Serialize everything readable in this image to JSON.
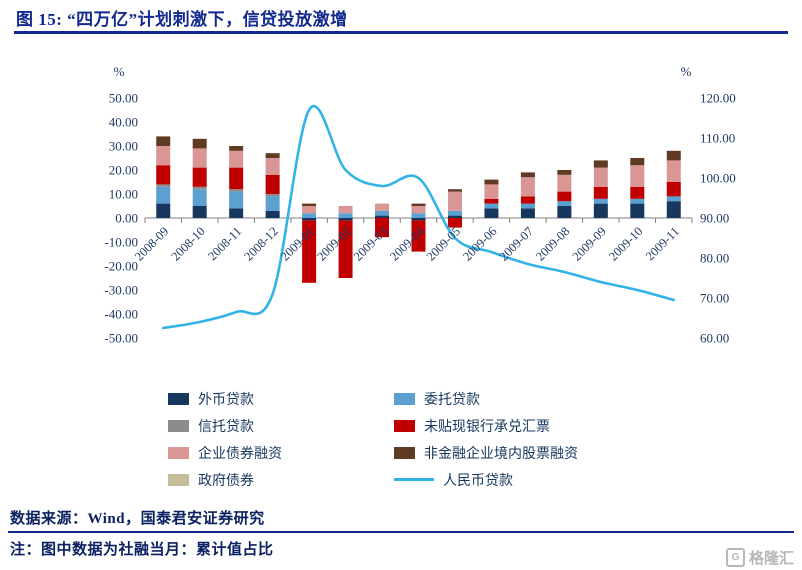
{
  "figure": {
    "title": "图 15:  “四万亿”计划刺激下，信贷投放激增"
  },
  "chart_data": {
    "type": "combo-stacked-bar-line",
    "title": "“四万亿”计划刺激下，信贷投放激增",
    "categories": [
      "2008-09",
      "2008-10",
      "2008-11",
      "2008-12",
      "2009-01",
      "2009-02",
      "2009-03",
      "2009-04",
      "2009-05",
      "2009-06",
      "2009-07",
      "2009-08",
      "2009-09",
      "2009-10",
      "2009-11"
    ],
    "bar_series": [
      {
        "name": "外币贷款",
        "color": "#17375E",
        "values": [
          6,
          5,
          4,
          3,
          -1,
          -1,
          1,
          -1,
          1,
          4,
          4,
          5,
          6,
          6,
          7
        ]
      },
      {
        "name": "委托贷款",
        "color": "#5BA0D0",
        "values": [
          7,
          7,
          7,
          6,
          2,
          2,
          2,
          2,
          2,
          2,
          2,
          2,
          2,
          2,
          2
        ]
      },
      {
        "name": "信托贷款",
        "color": "#8C8C8C",
        "values": [
          1,
          1,
          1,
          1,
          0,
          0,
          0,
          0,
          0,
          0,
          0,
          0,
          0,
          0,
          0
        ]
      },
      {
        "name": "未贴现银行承兑汇票",
        "color": "#C00000",
        "values": [
          8,
          8,
          9,
          8,
          -26,
          -24,
          -8,
          -13,
          -4,
          2,
          3,
          4,
          5,
          5,
          6
        ]
      },
      {
        "name": "企业债券融资",
        "color": "#D99694",
        "values": [
          8,
          8,
          7,
          7,
          3,
          3,
          3,
          3,
          8,
          6,
          8,
          7,
          8,
          9,
          9
        ]
      },
      {
        "name": "非金融企业境内股票融资",
        "color": "#5E3B22",
        "values": [
          4,
          4,
          2,
          2,
          1,
          0,
          0,
          1,
          1,
          2,
          2,
          2,
          3,
          3,
          4
        ]
      },
      {
        "name": "政府债券",
        "color": "#C4BD97",
        "values": [
          0,
          0,
          0,
          0,
          0,
          0,
          0,
          0,
          0,
          0,
          0,
          0,
          0,
          0,
          0
        ]
      }
    ],
    "line_series": {
      "name": "人民币贷款",
      "color": "#33B3E5",
      "axis": "right",
      "values": [
        62.5,
        64,
        66.5,
        71,
        117,
        102,
        98,
        100,
        85,
        81.5,
        78.5,
        76.5,
        74,
        72,
        69.5
      ]
    },
    "left_axis": {
      "unit": "%",
      "min": -50,
      "max": 50,
      "step": 10,
      "tick_labels": [
        "50.00",
        "40.00",
        "30.00",
        "20.00",
        "10.00",
        "0.00",
        "-10.00",
        "-20.00",
        "-30.00",
        "-40.00",
        "-50.00"
      ]
    },
    "right_axis": {
      "unit": "%",
      "min": 60,
      "max": 120,
      "step": 10,
      "tick_labels": [
        "120.00",
        "110.00",
        "100.00",
        "90.00",
        "80.00",
        "70.00",
        "60.00"
      ]
    },
    "grid": false,
    "legend_position": "bottom"
  },
  "legend": {
    "columns": [
      [
        {
          "label": "外币贷款",
          "swatch": "rect",
          "color": "#17375E"
        },
        {
          "label": "信托贷款",
          "swatch": "rect",
          "color": "#8C8C8C"
        },
        {
          "label": "企业债券融资",
          "swatch": "rect",
          "color": "#D99694"
        },
        {
          "label": "政府债券",
          "swatch": "rect",
          "color": "#C4BD97"
        }
      ],
      [
        {
          "label": "委托贷款",
          "swatch": "rect",
          "color": "#5BA0D0"
        },
        {
          "label": "未贴现银行承兑汇票",
          "swatch": "rect",
          "color": "#C00000"
        },
        {
          "label": "非金融企业境内股票融资",
          "swatch": "rect",
          "color": "#5E3B22"
        },
        {
          "label": "人民币贷款",
          "swatch": "line",
          "color": "#33B3E5"
        }
      ]
    ]
  },
  "footer": {
    "source": "数据来源：Wind，国泰君安证券研究",
    "note": "注：图中数据为社融当月：累计值占比"
  },
  "watermark": {
    "icon_letter": "G",
    "text": "格隆汇"
  }
}
